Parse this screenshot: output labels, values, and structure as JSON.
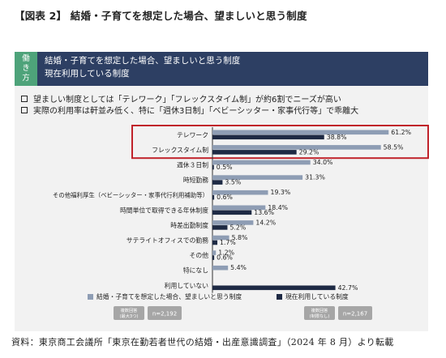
{
  "page_title": "【図表 2】 結婚・子育てを想定した場合、望ましいと思う制度",
  "header": {
    "tag_chars": [
      "働",
      "き",
      "方"
    ],
    "line1": "結婚・子育てを想定した場合、望ましいと思う制度",
    "line2": "現在利用している制度"
  },
  "bullets": [
    "望ましい制度としては「テレワーク」「フレックスタイム制」が約6割でニーズが高い",
    "実際の利用率は軒並み低く、特に「週休3日制」「ベビーシッター・家事代行等」で乖離大"
  ],
  "legend": {
    "series1_label": "結婚・子育てを想定した場合、望ましいと思う制度",
    "series2_label": "現在利用している制度",
    "series1_base": "複数回答\n(最大3つ)",
    "series1_n": "n=2,192",
    "series2_base": "複数回答\n(制限なし)",
    "series2_n": "n=2,167"
  },
  "colors": {
    "series1": "#8e9db4",
    "series2": "#1e2a44",
    "highlight": "#c0222a",
    "band": "#2d3f63",
    "tag": "#4ea37a"
  },
  "source": "資料：東京商工会議所「東京在勤若者世代の結婚・出産意識調査」（2024 年 8 月）より転載",
  "chart_data": {
    "type": "bar",
    "orientation": "horizontal",
    "categories": [
      "テレワーク",
      "フレックスタイム制",
      "週休３日制",
      "時短勤務",
      "その他福利厚生（ベビーシッター・家事代行利用補助等）",
      "時間単位で取得できる年休制度",
      "時差出勤制度",
      "サテライトオフィスでの勤務",
      "その他",
      "特になし",
      "利用していない"
    ],
    "series": [
      {
        "name": "結婚・子育てを想定した場合、望ましいと思う制度",
        "values": [
          61.2,
          58.5,
          34.0,
          31.3,
          19.3,
          18.4,
          14.2,
          5.8,
          1.2,
          5.4,
          null
        ]
      },
      {
        "name": "現在利用している制度",
        "values": [
          38.8,
          29.2,
          0.5,
          3.5,
          0.6,
          13.6,
          5.2,
          1.7,
          0.6,
          null,
          42.7
        ]
      }
    ],
    "value_labels": [
      [
        "61.2%",
        "38.8%"
      ],
      [
        "58.5%",
        "29.2%"
      ],
      [
        "34.0%",
        "0.5%"
      ],
      [
        "31.3%",
        "3.5%"
      ],
      [
        "19.3%",
        "0.6%"
      ],
      [
        "18.4%",
        "13.6%"
      ],
      [
        "14.2%",
        "5.2%"
      ],
      [
        "5.8%",
        "1.7%"
      ],
      [
        "1.2%",
        "0.6%"
      ],
      [
        "5.4%",
        ""
      ],
      [
        "",
        "42.7%"
      ]
    ],
    "highlighted_categories": [
      "テレワーク",
      "フレックスタイム制"
    ],
    "title": "",
    "xlabel": "",
    "ylabel": "",
    "xlim": [
      0,
      100
    ],
    "legend_position": "bottom"
  }
}
